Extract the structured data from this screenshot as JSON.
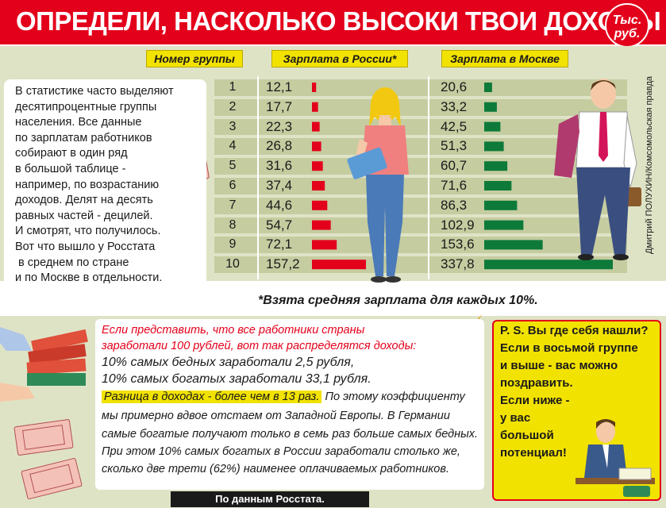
{
  "header": {
    "title": "ОПРЕДЕЛИ, НАСКОЛЬКО ВЫСОКИ ТВОИ ДОХОДЫ",
    "unit_line1": "Тыс.",
    "unit_line2": "руб."
  },
  "columns": {
    "group": "Номер группы",
    "russia": "Зарплата в России*",
    "moscow": "Зарплата в Москве"
  },
  "intro_lines": [
    "В статистике часто выделяют",
    "десятипроцентные группы",
    "населения. Все данные",
    "по зарплатам работников",
    "собирают в один ряд",
    "в большой таблице -",
    "например, по возрастанию",
    "доходов. Делят на десять",
    "равных частей - децилей.",
    "И смотрят, что получилось.",
    "Вот что вышло у Росстата",
    " в среднем по стране",
    "и по Москве в отдельности."
  ],
  "chart_data": {
    "type": "table",
    "title": "ОПРЕДЕЛИ, НАСКОЛЬКО ВЫСОКИ ТВОИ ДОХОДЫ",
    "unit": "Тыс. руб.",
    "groups": [
      "1",
      "2",
      "3",
      "4",
      "5",
      "6",
      "7",
      "8",
      "9",
      "10"
    ],
    "series": [
      {
        "name": "Зарплата в России*",
        "labels": [
          "12,1",
          "17,7",
          "22,3",
          "26,8",
          "31,6",
          "37,4",
          "44,6",
          "54,7",
          "72,1",
          "157,2"
        ],
        "values": [
          12.1,
          17.7,
          22.3,
          26.8,
          31.6,
          37.4,
          44.6,
          54.7,
          72.1,
          157.2
        ],
        "color": "#e3001b"
      },
      {
        "name": "Зарплата в Москве",
        "labels": [
          "20,6",
          "33,2",
          "42,5",
          "51,3",
          "60,7",
          "71,6",
          "86,3",
          "102,9",
          "153,6",
          "337,8"
        ],
        "values": [
          20.6,
          33.2,
          42.5,
          51.3,
          60.7,
          71.6,
          86.3,
          102.9,
          153.6,
          337.8
        ],
        "color": "#0d7a3a"
      }
    ]
  },
  "footnote": "*Взята средняя зарплата для каждых 10%.",
  "credit": "Дмитрий ПОЛУХИН/Комсомольская правда",
  "note": {
    "red_line1": "Если представить, что все работники страны",
    "red_line2": "заработали 100 рублей, вот так распределятся доходы:",
    "poor": "10% самых бедных заработали 2,5 рубля,",
    "rich": "10% самых богатых заработали 33,1 рубля.",
    "highlight": "Разница в доходах - более чем в 13 раз.",
    "after_highlight": " По этому коэффициенту",
    "line6": "мы примерно вдвое отстаем от Западной Европы. В Германии",
    "line7": "самые богатые получают только в семь раз больше самых бедных.",
    "line8": "При этом 10% самых богатых в России заработали столько же,",
    "line9": "сколько две трети (62%) наименее оплачиваемых работников."
  },
  "ps": {
    "lines": [
      "P. S. Вы где себя нашли?",
      "Если в восьмой группе",
      "и выше - вас можно",
      "поздравить.",
      "Если ниже -",
      "у вас",
      "большой",
      "потенциал!"
    ]
  },
  "source": "По данным Росстата.",
  "colors": {
    "red": "#e3001b",
    "green": "#0d7a3a",
    "yellow": "#f2e200",
    "olive_bg": "#dfe3c6"
  }
}
